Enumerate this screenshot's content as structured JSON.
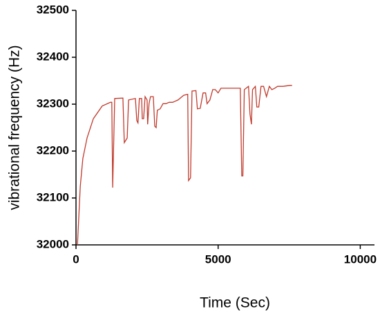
{
  "chart_data": {
    "type": "line",
    "x_label": "Time (Sec)",
    "y_label": "vibrational frequency (Hz)",
    "xlim": [
      0,
      10500
    ],
    "xticks": [
      0,
      5000,
      10000
    ],
    "ylim": [
      32000,
      32500
    ],
    "yticks": [
      32000,
      32100,
      32200,
      32300,
      32400,
      32500
    ],
    "grid": false,
    "x": [
      50,
      150,
      240,
      390,
      610,
      920,
      1210,
      1260,
      1290,
      1360,
      1650,
      1700,
      1800,
      1850,
      2090,
      2140,
      2180,
      2230,
      2310,
      2330,
      2380,
      2430,
      2500,
      2520,
      2570,
      2620,
      2720,
      2770,
      2820,
      2860,
      2960,
      3060,
      3160,
      3280,
      3400,
      3590,
      3790,
      3930,
      3960,
      4030,
      4080,
      4220,
      4270,
      4370,
      4470,
      4560,
      4610,
      4710,
      4810,
      4900,
      5000,
      5100,
      5340,
      5580,
      5780,
      5830,
      5870,
      5920,
      6070,
      6120,
      6170,
      6210,
      6310,
      6360,
      6430,
      6510,
      6600,
      6700,
      6800,
      6890,
      6990,
      7090,
      7280,
      7520,
      7600
    ],
    "series": [
      {
        "name": "frequency",
        "color": "#c0392b",
        "values": [
          32000,
          32125,
          32184,
          32228,
          32269,
          32296,
          32304,
          32304,
          32122,
          32312,
          32313,
          32218,
          32228,
          32309,
          32312,
          32265,
          32260,
          32312,
          32312,
          32269,
          32269,
          32316,
          32309,
          32257,
          32301,
          32316,
          32316,
          32253,
          32250,
          32287,
          32290,
          32301,
          32301,
          32304,
          32304,
          32309,
          32319,
          32321,
          32137,
          32143,
          32328,
          32329,
          32290,
          32291,
          32324,
          32324,
          32301,
          32309,
          32331,
          32331,
          32324,
          32334,
          32334,
          32334,
          32334,
          32147,
          32147,
          32331,
          32338,
          32279,
          32257,
          32331,
          32338,
          32294,
          32294,
          32338,
          32338,
          32316,
          32338,
          32331,
          32334,
          32338,
          32338,
          32340,
          32340
        ]
      }
    ]
  }
}
